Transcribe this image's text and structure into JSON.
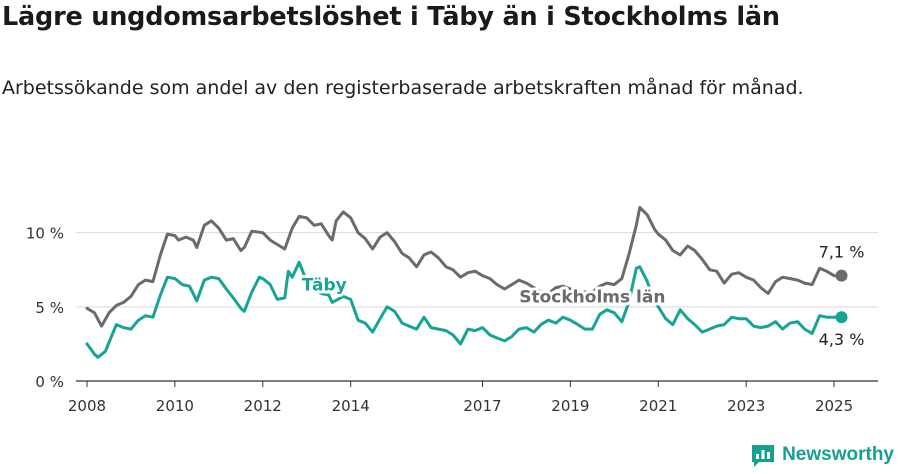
{
  "title": "Lägre ungdomsarbetslöshet i Täby än i Stockholms län",
  "subtitle": "Arbetssökande som andel av den registerbaserade arbetskraften månad för månad.",
  "brand": {
    "name": "Newsworthy",
    "icon": "newsworthy-logo-icon",
    "color": "#15a08f"
  },
  "colors": {
    "stockholm": "#6b6b6f",
    "taby": "#16a494",
    "grid": "#d9d9d9",
    "axis": "#333333"
  },
  "chart_data": {
    "type": "line",
    "title": "Lägre ungdomsarbetslöshet i Täby än i Stockholms län",
    "xlabel": "",
    "ylabel": "",
    "ylim": [
      0,
      12
    ],
    "xlim": [
      2007.75,
      2026.0
    ],
    "yticks": [
      {
        "value": 0,
        "label": "0 %"
      },
      {
        "value": 5,
        "label": "5 %"
      },
      {
        "value": 10,
        "label": "10 %"
      }
    ],
    "xticks": [
      {
        "value": 2008,
        "label": "2008"
      },
      {
        "value": 2010,
        "label": "2010"
      },
      {
        "value": 2012,
        "label": "2012"
      },
      {
        "value": 2014,
        "label": "2014"
      },
      {
        "value": 2017,
        "label": "2017"
      },
      {
        "value": 2019,
        "label": "2019"
      },
      {
        "value": 2021,
        "label": "2021"
      },
      {
        "value": 2023,
        "label": "2023"
      },
      {
        "value": 2025,
        "label": "2025"
      }
    ],
    "series": [
      {
        "name": "Stockholms län",
        "color": "#6b6b6f",
        "end_label": "7,1 %",
        "points": [
          [
            2008.0,
            4.9
          ],
          [
            2008.17,
            4.6
          ],
          [
            2008.33,
            3.7
          ],
          [
            2008.5,
            4.6
          ],
          [
            2008.67,
            5.1
          ],
          [
            2008.83,
            5.3
          ],
          [
            2009.0,
            5.7
          ],
          [
            2009.17,
            6.5
          ],
          [
            2009.33,
            6.8
          ],
          [
            2009.5,
            6.7
          ],
          [
            2009.67,
            8.5
          ],
          [
            2009.83,
            9.9
          ],
          [
            2010.0,
            9.8
          ],
          [
            2010.08,
            9.5
          ],
          [
            2010.25,
            9.7
          ],
          [
            2010.42,
            9.5
          ],
          [
            2010.5,
            9.0
          ],
          [
            2010.67,
            10.5
          ],
          [
            2010.83,
            10.8
          ],
          [
            2011.0,
            10.3
          ],
          [
            2011.17,
            9.5
          ],
          [
            2011.33,
            9.6
          ],
          [
            2011.5,
            8.8
          ],
          [
            2011.58,
            9.0
          ],
          [
            2011.75,
            10.1
          ],
          [
            2012.0,
            10.0
          ],
          [
            2012.17,
            9.5
          ],
          [
            2012.33,
            9.2
          ],
          [
            2012.5,
            8.9
          ],
          [
            2012.67,
            10.3
          ],
          [
            2012.83,
            11.1
          ],
          [
            2013.0,
            11.0
          ],
          [
            2013.17,
            10.5
          ],
          [
            2013.33,
            10.6
          ],
          [
            2013.5,
            9.8
          ],
          [
            2013.58,
            9.5
          ],
          [
            2013.67,
            10.8
          ],
          [
            2013.83,
            11.4
          ],
          [
            2014.0,
            11.0
          ],
          [
            2014.17,
            10.0
          ],
          [
            2014.33,
            9.6
          ],
          [
            2014.5,
            8.9
          ],
          [
            2014.67,
            9.7
          ],
          [
            2014.83,
            10.0
          ],
          [
            2015.0,
            9.4
          ],
          [
            2015.17,
            8.6
          ],
          [
            2015.33,
            8.3
          ],
          [
            2015.5,
            7.7
          ],
          [
            2015.67,
            8.5
          ],
          [
            2015.83,
            8.7
          ],
          [
            2016.0,
            8.3
          ],
          [
            2016.17,
            7.7
          ],
          [
            2016.33,
            7.5
          ],
          [
            2016.5,
            7.0
          ],
          [
            2016.67,
            7.3
          ],
          [
            2016.83,
            7.4
          ],
          [
            2017.0,
            7.1
          ],
          [
            2017.17,
            6.9
          ],
          [
            2017.33,
            6.5
          ],
          [
            2017.5,
            6.2
          ],
          [
            2017.67,
            6.5
          ],
          [
            2017.83,
            6.8
          ],
          [
            2018.0,
            6.6
          ],
          [
            2018.17,
            6.3
          ],
          [
            2018.33,
            6.0
          ],
          [
            2018.5,
            5.9
          ],
          [
            2018.67,
            6.3
          ],
          [
            2018.83,
            6.4
          ],
          [
            2019.0,
            6.2
          ],
          [
            2019.17,
            6.0
          ],
          [
            2019.33,
            6.0
          ],
          [
            2019.5,
            6.0
          ],
          [
            2019.67,
            6.4
          ],
          [
            2019.83,
            6.6
          ],
          [
            2020.0,
            6.5
          ],
          [
            2020.17,
            6.9
          ],
          [
            2020.33,
            8.5
          ],
          [
            2020.5,
            10.5
          ],
          [
            2020.58,
            11.7
          ],
          [
            2020.75,
            11.2
          ],
          [
            2020.92,
            10.2
          ],
          [
            2021.0,
            9.9
          ],
          [
            2021.17,
            9.5
          ],
          [
            2021.33,
            8.8
          ],
          [
            2021.5,
            8.5
          ],
          [
            2021.67,
            9.1
          ],
          [
            2021.83,
            8.8
          ],
          [
            2022.0,
            8.2
          ],
          [
            2022.17,
            7.5
          ],
          [
            2022.33,
            7.4
          ],
          [
            2022.5,
            6.6
          ],
          [
            2022.67,
            7.2
          ],
          [
            2022.83,
            7.3
          ],
          [
            2023.0,
            7.0
          ],
          [
            2023.17,
            6.8
          ],
          [
            2023.33,
            6.3
          ],
          [
            2023.5,
            5.9
          ],
          [
            2023.67,
            6.7
          ],
          [
            2023.83,
            7.0
          ],
          [
            2024.0,
            6.9
          ],
          [
            2024.17,
            6.8
          ],
          [
            2024.33,
            6.6
          ],
          [
            2024.5,
            6.5
          ],
          [
            2024.67,
            7.6
          ],
          [
            2024.83,
            7.4
          ],
          [
            2025.0,
            7.1
          ],
          [
            2025.17,
            7.1
          ]
        ]
      },
      {
        "name": "Täby",
        "color": "#16a494",
        "end_label": "4,3 %",
        "points": [
          [
            2008.0,
            2.5
          ],
          [
            2008.17,
            1.8
          ],
          [
            2008.25,
            1.6
          ],
          [
            2008.42,
            2.0
          ],
          [
            2008.5,
            2.6
          ],
          [
            2008.67,
            3.8
          ],
          [
            2008.83,
            3.6
          ],
          [
            2009.0,
            3.5
          ],
          [
            2009.17,
            4.1
          ],
          [
            2009.33,
            4.4
          ],
          [
            2009.5,
            4.3
          ],
          [
            2009.67,
            5.8
          ],
          [
            2009.83,
            7.0
          ],
          [
            2010.0,
            6.9
          ],
          [
            2010.17,
            6.5
          ],
          [
            2010.33,
            6.4
          ],
          [
            2010.5,
            5.4
          ],
          [
            2010.67,
            6.8
          ],
          [
            2010.83,
            7.0
          ],
          [
            2011.0,
            6.9
          ],
          [
            2011.17,
            6.2
          ],
          [
            2011.33,
            5.6
          ],
          [
            2011.5,
            4.9
          ],
          [
            2011.58,
            4.7
          ],
          [
            2011.75,
            6.0
          ],
          [
            2011.92,
            7.0
          ],
          [
            2012.0,
            6.9
          ],
          [
            2012.17,
            6.5
          ],
          [
            2012.33,
            5.5
          ],
          [
            2012.5,
            5.6
          ],
          [
            2012.58,
            7.4
          ],
          [
            2012.67,
            7.0
          ],
          [
            2012.83,
            8.0
          ],
          [
            2013.0,
            6.7
          ],
          [
            2013.17,
            6.2
          ],
          [
            2013.33,
            5.9
          ],
          [
            2013.5,
            5.8
          ],
          [
            2013.58,
            5.3
          ],
          [
            2013.83,
            5.7
          ],
          [
            2014.0,
            5.5
          ],
          [
            2014.17,
            4.1
          ],
          [
            2014.33,
            3.9
          ],
          [
            2014.5,
            3.3
          ],
          [
            2014.67,
            4.2
          ],
          [
            2014.83,
            5.0
          ],
          [
            2015.0,
            4.7
          ],
          [
            2015.17,
            3.9
          ],
          [
            2015.33,
            3.7
          ],
          [
            2015.5,
            3.5
          ],
          [
            2015.67,
            4.3
          ],
          [
            2015.83,
            3.6
          ],
          [
            2016.0,
            3.5
          ],
          [
            2016.17,
            3.4
          ],
          [
            2016.33,
            3.1
          ],
          [
            2016.5,
            2.5
          ],
          [
            2016.67,
            3.5
          ],
          [
            2016.83,
            3.4
          ],
          [
            2017.0,
            3.6
          ],
          [
            2017.17,
            3.1
          ],
          [
            2017.33,
            2.9
          ],
          [
            2017.5,
            2.7
          ],
          [
            2017.67,
            3.0
          ],
          [
            2017.83,
            3.5
          ],
          [
            2018.0,
            3.6
          ],
          [
            2018.17,
            3.3
          ],
          [
            2018.33,
            3.8
          ],
          [
            2018.5,
            4.1
          ],
          [
            2018.67,
            3.9
          ],
          [
            2018.83,
            4.3
          ],
          [
            2019.0,
            4.1
          ],
          [
            2019.17,
            3.8
          ],
          [
            2019.33,
            3.5
          ],
          [
            2019.5,
            3.5
          ],
          [
            2019.67,
            4.5
          ],
          [
            2019.83,
            4.8
          ],
          [
            2020.0,
            4.6
          ],
          [
            2020.17,
            4.0
          ],
          [
            2020.33,
            5.3
          ],
          [
            2020.5,
            7.6
          ],
          [
            2020.58,
            7.7
          ],
          [
            2020.75,
            6.7
          ],
          [
            2020.92,
            5.3
          ],
          [
            2021.0,
            5.0
          ],
          [
            2021.17,
            4.2
          ],
          [
            2021.33,
            3.8
          ],
          [
            2021.5,
            4.8
          ],
          [
            2021.67,
            4.2
          ],
          [
            2021.83,
            3.8
          ],
          [
            2022.0,
            3.3
          ],
          [
            2022.17,
            3.5
          ],
          [
            2022.33,
            3.7
          ],
          [
            2022.5,
            3.8
          ],
          [
            2022.67,
            4.3
          ],
          [
            2022.83,
            4.2
          ],
          [
            2023.0,
            4.2
          ],
          [
            2023.17,
            3.7
          ],
          [
            2023.33,
            3.6
          ],
          [
            2023.5,
            3.7
          ],
          [
            2023.67,
            4.0
          ],
          [
            2023.83,
            3.5
          ],
          [
            2024.0,
            3.9
          ],
          [
            2024.17,
            4.0
          ],
          [
            2024.33,
            3.5
          ],
          [
            2024.5,
            3.2
          ],
          [
            2024.67,
            4.4
          ],
          [
            2024.83,
            4.3
          ],
          [
            2025.0,
            4.3
          ],
          [
            2025.17,
            4.3
          ]
        ]
      }
    ]
  }
}
